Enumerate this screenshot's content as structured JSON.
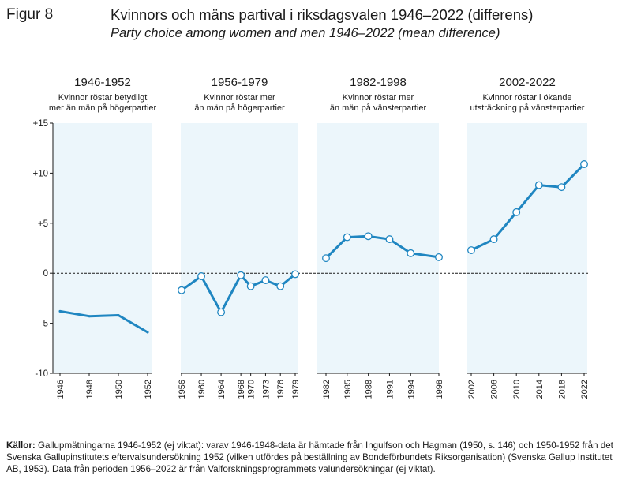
{
  "figure_label": "Figur 8",
  "title": "Kvinnors och mäns partival i riksdagsvalen 1946–2022 (differens)",
  "subtitle": "Party choice among women and men 1946–2022 (mean difference)",
  "sources": {
    "label": "Källor:",
    "text": " Gallupmätningarna 1946-1952 (ej viktat): varav 1946-1948-data är hämtade från Ingulfson och Hagman (1950, s. 146) och 1950-1952 från det Svenska Gallupinstitutets eftervalsundersökning 1952 (vilken utfördes på beställning av Bondeförbundets Riksor­ganisation) (Svenska Gallup Institutet AB, 1953). Data från perioden 1956–2022 är från Valforskningsprogrammets valundersökningar (ej viktat)."
  },
  "colors": {
    "line": "#1f86c1",
    "panel_bg": "#ecf6fb",
    "zero_line": "#1a1a1a"
  },
  "chart_data": {
    "type": "line",
    "ylim": [
      -10,
      15
    ],
    "yticks": [
      {
        "value": 15,
        "label": "+15"
      },
      {
        "value": 10,
        "label": "+10"
      },
      {
        "value": 5,
        "label": "+5"
      },
      {
        "value": 0,
        "label": "0"
      },
      {
        "value": -5,
        "label": "-5"
      },
      {
        "value": -10,
        "label": "-10"
      }
    ],
    "panels": [
      {
        "title": "1946-1952",
        "subtitle_lines": [
          "Kvinnor röstar betydligt",
          "mer än män på högerpartier"
        ],
        "xlim": [
          1946,
          1952
        ],
        "x": [
          1946,
          1948,
          1950,
          1952
        ],
        "y": [
          -3.8,
          -4.3,
          -4.2,
          -5.9
        ],
        "xtick_labels": [
          "1946",
          "1948",
          "1950",
          "1952"
        ],
        "markers": false
      },
      {
        "title": "1956-1979",
        "subtitle_lines": [
          "Kvinnor röstar mer",
          "än män på högerpartier"
        ],
        "xlim": [
          1956,
          1979
        ],
        "x": [
          1956,
          1960,
          1964,
          1968,
          1970,
          1973,
          1976,
          1979
        ],
        "y": [
          -1.7,
          -0.3,
          -3.9,
          -0.2,
          -1.3,
          -0.7,
          -1.3,
          -0.1
        ],
        "xtick_labels": [
          "1956",
          "1960",
          "1964",
          "1968",
          "1970",
          "1973",
          "1976",
          "1979"
        ],
        "markers": true
      },
      {
        "title": "1982-1998",
        "subtitle_lines": [
          "Kvinnor röstar mer",
          "än män på vänsterpartier"
        ],
        "xlim": [
          1982,
          1998
        ],
        "x": [
          1982,
          1985,
          1988,
          1991,
          1994,
          1998
        ],
        "y": [
          1.5,
          3.6,
          3.7,
          3.4,
          2.0,
          1.6
        ],
        "xtick_labels": [
          "1982",
          "1985",
          "1988",
          "1991",
          "1994",
          "1998"
        ],
        "markers": true
      },
      {
        "title": "2002-2022",
        "subtitle_lines": [
          "Kvinnor röstar i ökande",
          "utsträckning på vänsterpartier"
        ],
        "xlim": [
          2002,
          2022
        ],
        "x": [
          2002,
          2006,
          2010,
          2014,
          2018,
          2022
        ],
        "y": [
          2.3,
          3.4,
          6.1,
          8.8,
          8.6,
          10.9
        ],
        "xtick_labels": [
          "2002",
          "2006",
          "2010",
          "2014",
          "2018",
          "2022"
        ],
        "markers": true
      }
    ]
  }
}
